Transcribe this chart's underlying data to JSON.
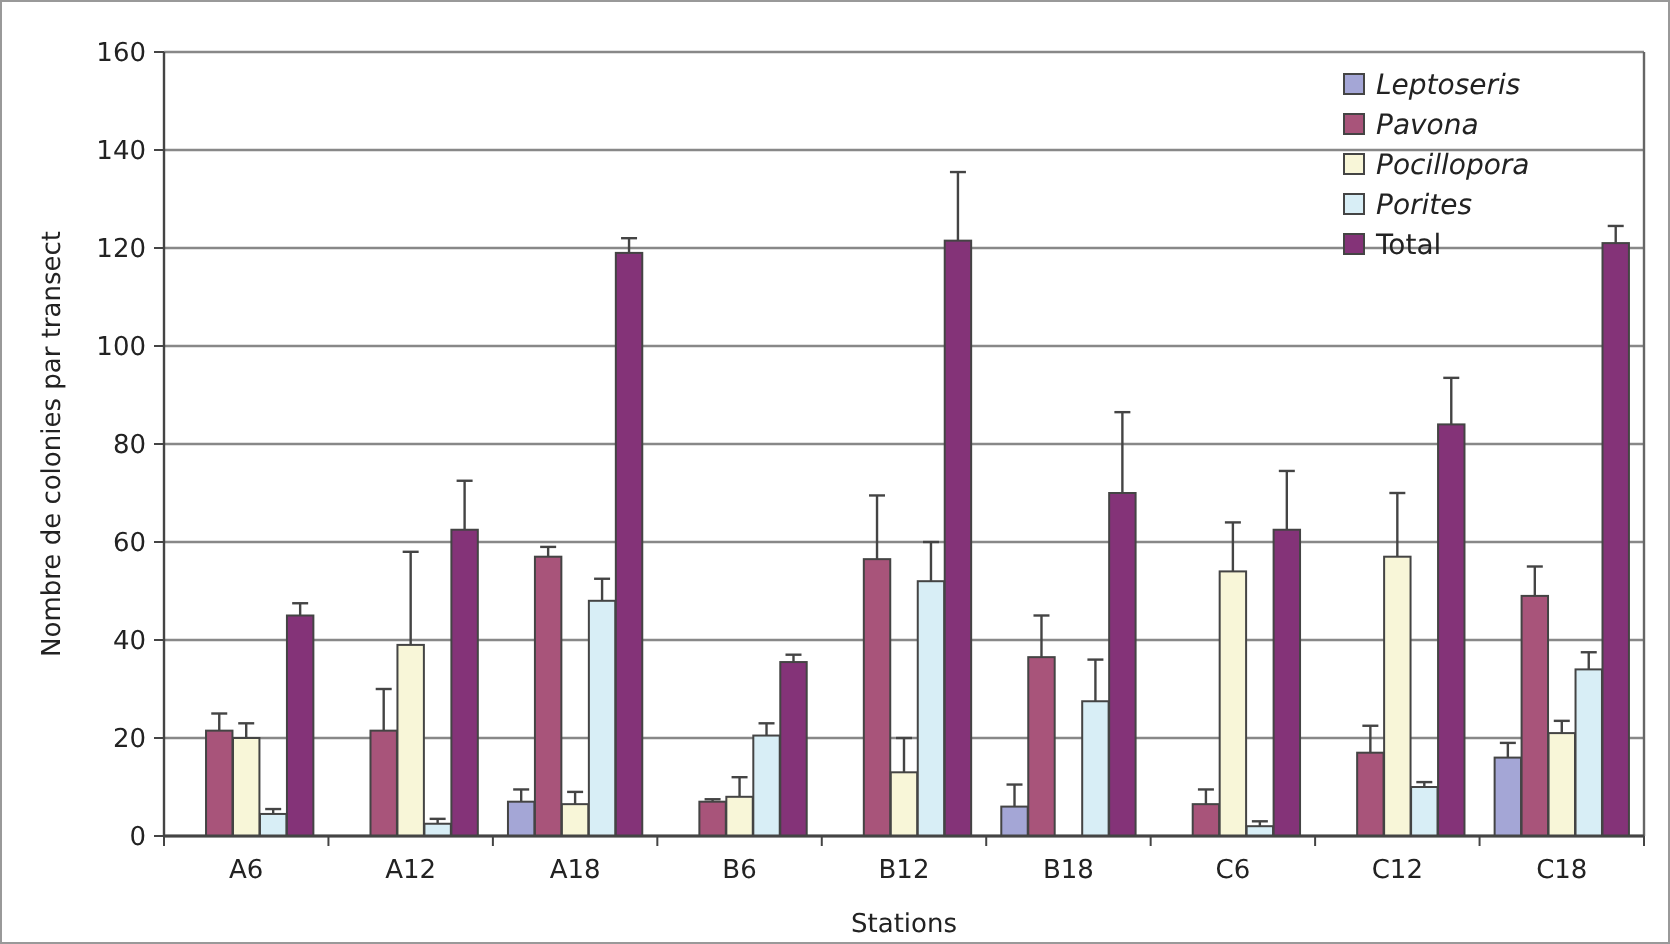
{
  "chart_data": {
    "type": "bar",
    "xlabel": "Stations",
    "ylabel": "Nombre de colonies par transect",
    "categories": [
      "A6",
      "A12",
      "A18",
      "B6",
      "B12",
      "B18",
      "C6",
      "C12",
      "C18"
    ],
    "ylim": [
      0,
      160
    ],
    "yticks": [
      0,
      20,
      40,
      60,
      80,
      100,
      120,
      140,
      160
    ],
    "grid": "y",
    "legend": "top right",
    "series": [
      {
        "name": "Leptoseris",
        "color": "#a4a6d6",
        "values": [
          0,
          0,
          7,
          0,
          0,
          6,
          0,
          0,
          16
        ],
        "errors": [
          null,
          null,
          [
            7,
            9.5
          ],
          null,
          null,
          [
            6,
            10.5
          ],
          null,
          null,
          [
            16,
            19
          ]
        ]
      },
      {
        "name": "Pavona",
        "color": "#a8547a",
        "values": [
          21.5,
          21.5,
          57,
          7,
          56.5,
          36.5,
          6.5,
          17,
          49
        ],
        "errors": [
          [
            21.5,
            25
          ],
          [
            21.5,
            30
          ],
          [
            57,
            59
          ],
          [
            7,
            7.5
          ],
          [
            56.5,
            69.5
          ],
          [
            36.5,
            45
          ],
          [
            6.5,
            9.5
          ],
          [
            17,
            22.5
          ],
          [
            49,
            55
          ]
        ]
      },
      {
        "name": "Pocillopora",
        "color": "#f8f6d8",
        "values": [
          20,
          39,
          6.5,
          8,
          13,
          0,
          54,
          57,
          21
        ],
        "errors": [
          [
            20,
            23
          ],
          [
            39,
            58
          ],
          [
            6.5,
            9
          ],
          [
            8,
            12
          ],
          [
            13,
            20
          ],
          null,
          [
            54,
            64
          ],
          [
            57,
            70
          ],
          [
            21,
            23.5
          ]
        ]
      },
      {
        "name": "Porites",
        "color": "#d8eef6",
        "values": [
          4.5,
          2.5,
          48,
          20.5,
          52,
          27.5,
          2,
          10,
          34
        ],
        "errors": [
          [
            4.5,
            5.5
          ],
          [
            2.5,
            3.5
          ],
          [
            48,
            52.5
          ],
          [
            20.5,
            23
          ],
          [
            52,
            60
          ],
          [
            27.5,
            36
          ],
          [
            2,
            3
          ],
          [
            10,
            11
          ],
          [
            34,
            37.5
          ]
        ]
      },
      {
        "name": "Total",
        "color": "#843378",
        "values": [
          45,
          62.5,
          119,
          35.5,
          121.5,
          70,
          62.5,
          84,
          121
        ],
        "errors": [
          [
            45,
            47.5
          ],
          [
            62.5,
            72.5
          ],
          [
            119,
            122
          ],
          [
            35.5,
            37
          ],
          [
            121.5,
            135.5
          ],
          [
            70,
            86.5
          ],
          [
            62.5,
            74.5
          ],
          [
            84,
            93.5
          ],
          [
            121,
            124.5
          ]
        ]
      }
    ]
  }
}
